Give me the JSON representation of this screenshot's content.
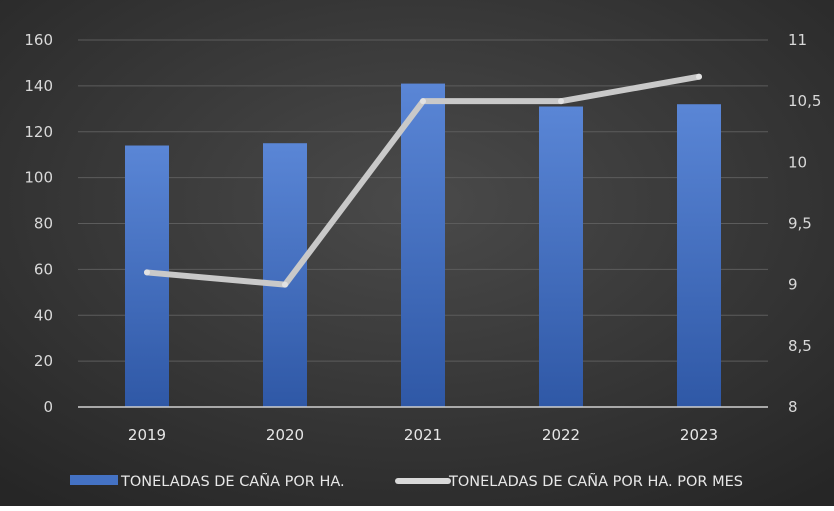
{
  "chart_data": {
    "type": "bar",
    "categories": [
      "2019",
      "2020",
      "2021",
      "2022",
      "2023"
    ],
    "series": [
      {
        "name": "TONELADAS DE CAÑA POR HA.",
        "type": "bar",
        "axis": "left",
        "values": [
          114,
          115,
          141,
          131,
          132
        ],
        "color": "#4472c4"
      },
      {
        "name": "TONELADAS DE CAÑA POR HA. POR MES",
        "type": "line",
        "axis": "right",
        "values": [
          9.1,
          9.0,
          10.5,
          10.5,
          10.7
        ],
        "color": "#d9d9d9"
      }
    ],
    "y_left": {
      "ylim": [
        0,
        160
      ],
      "ticks": [
        0,
        20,
        40,
        60,
        80,
        100,
        120,
        140,
        160
      ],
      "tick_labels": [
        "0",
        "20",
        "40",
        "60",
        "80",
        "100",
        "120",
        "140",
        "160"
      ]
    },
    "y_right": {
      "ylim": [
        8,
        11
      ],
      "ticks": [
        8,
        8.5,
        9,
        9.5,
        10,
        10.5,
        11
      ],
      "tick_labels": [
        "8",
        "8,5",
        "9",
        "9,5",
        "10",
        "10,5",
        "11"
      ]
    },
    "grid": true,
    "legend": "bottom",
    "background": "#3a3a3a"
  }
}
